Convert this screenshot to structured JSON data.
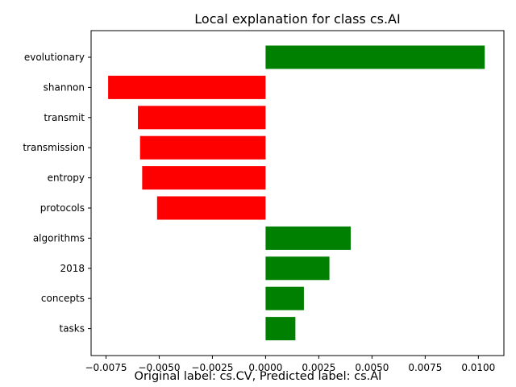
{
  "chart_data": {
    "type": "bar",
    "orientation": "horizontal",
    "title": "Local explanation for class cs.AI",
    "xlabel": "",
    "ylabel": "",
    "xlim": [
      -0.0082,
      0.0112
    ],
    "x_ticks": [
      -0.0075,
      -0.005,
      -0.0025,
      0.0,
      0.0025,
      0.005,
      0.0075,
      0.01
    ],
    "x_tick_labels": [
      "−0.0075",
      "−0.0050",
      "−0.0025",
      "0.0000",
      "0.0025",
      "0.0050",
      "0.0075",
      "0.0100"
    ],
    "grid": false,
    "categories": [
      "evolutionary",
      "shannon",
      "transmit",
      "transmission",
      "entropy",
      "protocols",
      "algorithms",
      "2018",
      "concepts",
      "tasks"
    ],
    "values": [
      0.0103,
      -0.0074,
      -0.006,
      -0.0059,
      -0.0058,
      -0.0051,
      0.004,
      0.003,
      0.0018,
      0.0014
    ],
    "colors": {
      "positive": "#008000",
      "negative": "#ff0000"
    }
  },
  "caption": "Original label: cs.CV, Predicted label: cs.AI"
}
